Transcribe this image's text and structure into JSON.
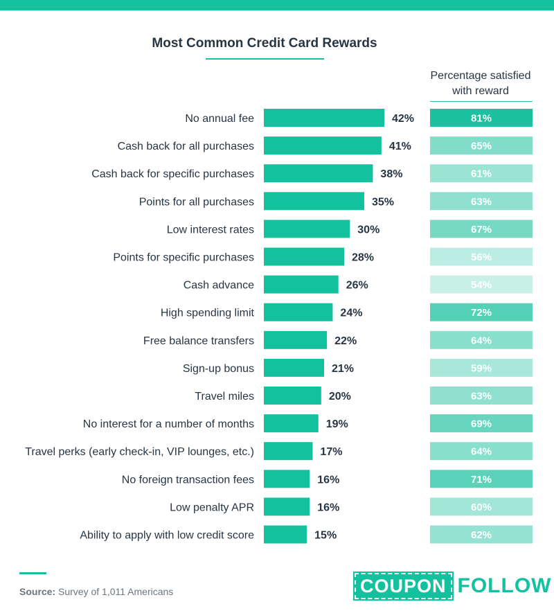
{
  "brand": {
    "accent": "#14c19f",
    "text": "#263544"
  },
  "title": "Most Common Credit Card Rewards",
  "side_header": "Percentage satisfied with reward",
  "source_label": "Source:",
  "source_text": "Survey of 1,011 Americans",
  "logo": {
    "part1": "COUPON",
    "part2": "FOLLOW"
  },
  "chart_data": {
    "type": "bar",
    "orientation": "horizontal",
    "title": "Most Common Credit Card Rewards",
    "categories": [
      "No annual fee",
      "Cash back for all purchases",
      "Cash back for specific purchases",
      "Points for all purchases",
      "Low interest rates",
      "Points for specific purchases",
      "Cash advance",
      "High spending limit",
      "Free balance transfers",
      "Sign-up bonus",
      "Travel miles",
      "No interest for a number of months",
      "Travel perks (early check-in, VIP lounges, etc.)",
      "No foreign transaction fees",
      "Low penalty APR",
      "Ability to apply with low credit score"
    ],
    "values": [
      42,
      41,
      38,
      35,
      30,
      28,
      26,
      24,
      22,
      21,
      20,
      19,
      17,
      16,
      16,
      15
    ],
    "value_labels": [
      "42%",
      "41%",
      "38%",
      "35%",
      "30%",
      "28%",
      "26%",
      "24%",
      "22%",
      "21%",
      "20%",
      "19%",
      "17%",
      "16%",
      "16%",
      "15%"
    ],
    "satisfaction": {
      "name": "Percentage satisfied with reward",
      "values": [
        81,
        65,
        61,
        63,
        67,
        56,
        54,
        72,
        64,
        59,
        63,
        69,
        64,
        71,
        60,
        62
      ],
      "labels": [
        "81%",
        "65%",
        "61%",
        "63%",
        "67%",
        "56%",
        "54%",
        "72%",
        "64%",
        "59%",
        "63%",
        "69%",
        "64%",
        "71%",
        "60%",
        "62%"
      ]
    },
    "xlim": [
      0,
      42
    ],
    "grid": false,
    "legend": "none"
  }
}
